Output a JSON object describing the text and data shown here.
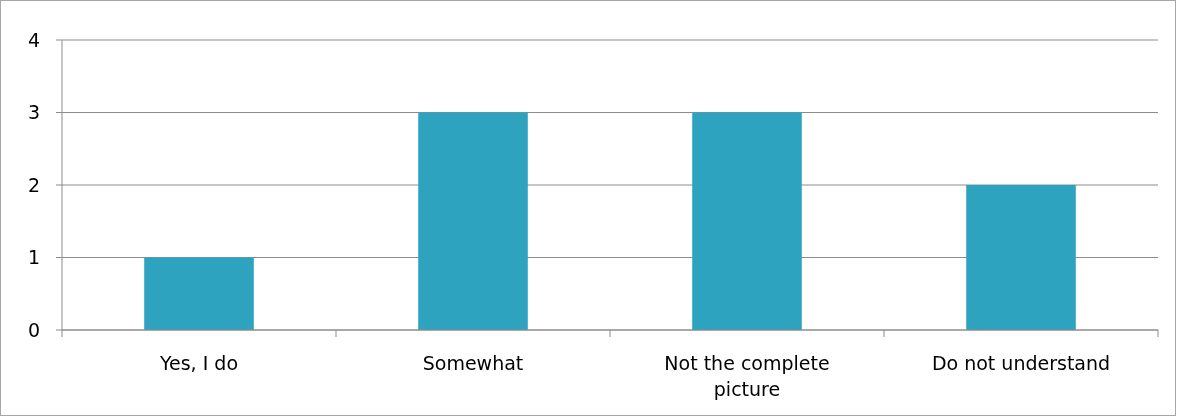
{
  "chart_data": {
    "type": "bar",
    "categories": [
      "Yes, I do",
      "Somewhat",
      "Not the complete picture",
      "Do not understand"
    ],
    "values": [
      1,
      3,
      3,
      2
    ],
    "color": "#2ea3c0",
    "ylim": [
      0,
      4
    ],
    "yticks": [
      0,
      1,
      2,
      3,
      4
    ],
    "grid": "y"
  }
}
